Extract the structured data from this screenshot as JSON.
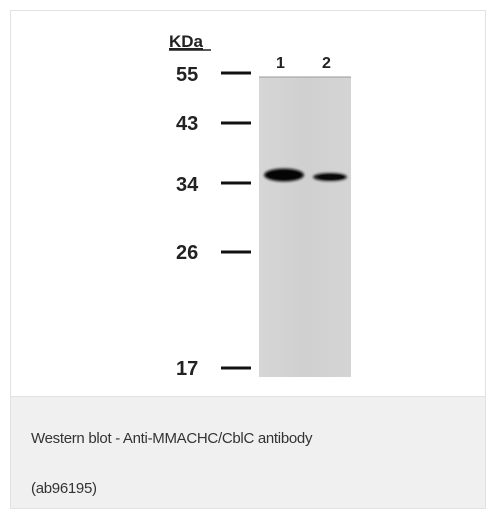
{
  "figure": {
    "unit_label": "KDa",
    "lane_labels": [
      "1",
      "2"
    ],
    "markers": [
      "55",
      "43",
      "34",
      "26",
      "17"
    ]
  },
  "caption": {
    "line1": "Western blot - Anti-MMACHC/CblC antibody",
    "line2": "(ab96195)"
  },
  "colors": {
    "membrane": "#d2d2d2",
    "band": "#0d0d0d",
    "caption_bg": "#f0f0f0",
    "caption_text": "#333333"
  }
}
